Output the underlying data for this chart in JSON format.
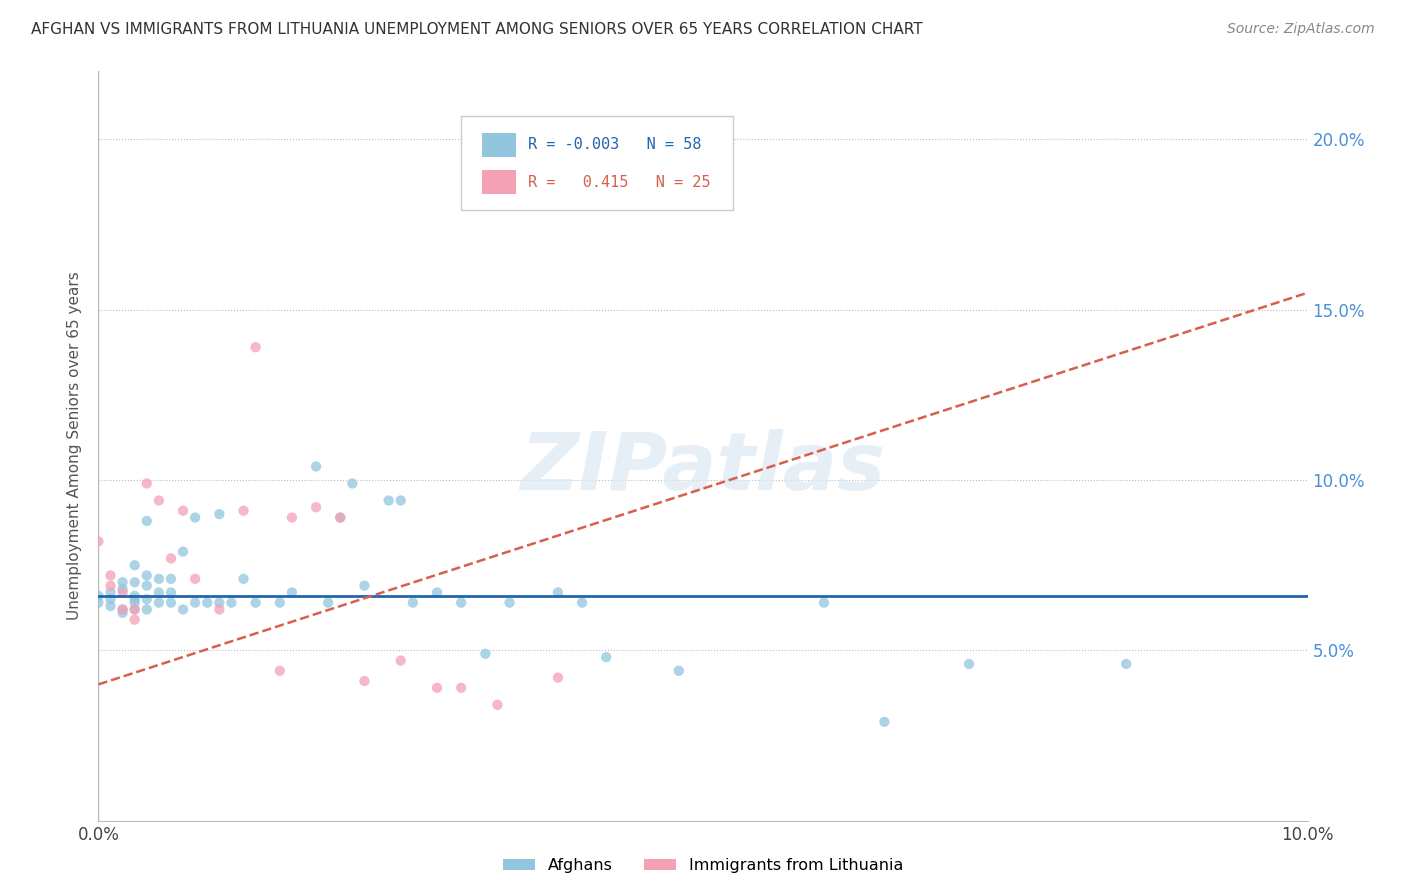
{
  "title": "AFGHAN VS IMMIGRANTS FROM LITHUANIA UNEMPLOYMENT AMONG SENIORS OVER 65 YEARS CORRELATION CHART",
  "source": "Source: ZipAtlas.com",
  "ylabel": "Unemployment Among Seniors over 65 years",
  "xlim": [
    0.0,
    0.1
  ],
  "ylim": [
    0.0,
    0.22
  ],
  "ytick_values": [
    0.0,
    0.05,
    0.1,
    0.15,
    0.2
  ],
  "xtick_values": [
    0.0,
    0.01,
    0.02,
    0.03,
    0.04,
    0.05,
    0.06,
    0.07,
    0.08,
    0.09,
    0.1
  ],
  "afghan_color": "#92c5de",
  "lithuania_color": "#f4a0b5",
  "afghan_line_color": "#2166ac",
  "lithuania_line_color": "#d6604d",
  "watermark": "ZIPatlas",
  "legend_r_afghan": "-0.003",
  "legend_n_afghan": "58",
  "legend_r_lithuania": "0.415",
  "legend_n_lithuania": "25",
  "afghan_scatter_x": [
    0.0,
    0.0,
    0.001,
    0.001,
    0.001,
    0.002,
    0.002,
    0.002,
    0.002,
    0.003,
    0.003,
    0.003,
    0.003,
    0.003,
    0.003,
    0.004,
    0.004,
    0.004,
    0.004,
    0.004,
    0.005,
    0.005,
    0.005,
    0.006,
    0.006,
    0.006,
    0.007,
    0.007,
    0.008,
    0.008,
    0.009,
    0.01,
    0.01,
    0.011,
    0.012,
    0.013,
    0.015,
    0.016,
    0.018,
    0.019,
    0.02,
    0.021,
    0.022,
    0.024,
    0.025,
    0.026,
    0.028,
    0.03,
    0.032,
    0.034,
    0.038,
    0.04,
    0.042,
    0.048,
    0.06,
    0.065,
    0.072,
    0.085
  ],
  "afghan_scatter_y": [
    0.066,
    0.064,
    0.067,
    0.065,
    0.063,
    0.061,
    0.062,
    0.068,
    0.07,
    0.062,
    0.064,
    0.065,
    0.066,
    0.07,
    0.075,
    0.062,
    0.069,
    0.072,
    0.088,
    0.065,
    0.064,
    0.067,
    0.071,
    0.067,
    0.071,
    0.064,
    0.079,
    0.062,
    0.064,
    0.089,
    0.064,
    0.064,
    0.09,
    0.064,
    0.071,
    0.064,
    0.064,
    0.067,
    0.104,
    0.064,
    0.089,
    0.099,
    0.069,
    0.094,
    0.094,
    0.064,
    0.067,
    0.064,
    0.049,
    0.064,
    0.067,
    0.064,
    0.048,
    0.044,
    0.064,
    0.029,
    0.046,
    0.046
  ],
  "lithuania_scatter_x": [
    0.0,
    0.001,
    0.001,
    0.002,
    0.002,
    0.003,
    0.003,
    0.004,
    0.005,
    0.006,
    0.007,
    0.008,
    0.01,
    0.012,
    0.013,
    0.015,
    0.016,
    0.018,
    0.02,
    0.022,
    0.025,
    0.028,
    0.03,
    0.033,
    0.038
  ],
  "lithuania_scatter_y": [
    0.082,
    0.072,
    0.069,
    0.067,
    0.062,
    0.062,
    0.059,
    0.099,
    0.094,
    0.077,
    0.091,
    0.071,
    0.062,
    0.091,
    0.139,
    0.044,
    0.089,
    0.092,
    0.089,
    0.041,
    0.047,
    0.039,
    0.039,
    0.034,
    0.042
  ],
  "afghan_line_x": [
    0.0,
    0.1
  ],
  "afghan_line_y": [
    0.066,
    0.066
  ],
  "lithuania_line_x": [
    0.0,
    0.1
  ],
  "lithuania_line_y": [
    0.04,
    0.155
  ]
}
